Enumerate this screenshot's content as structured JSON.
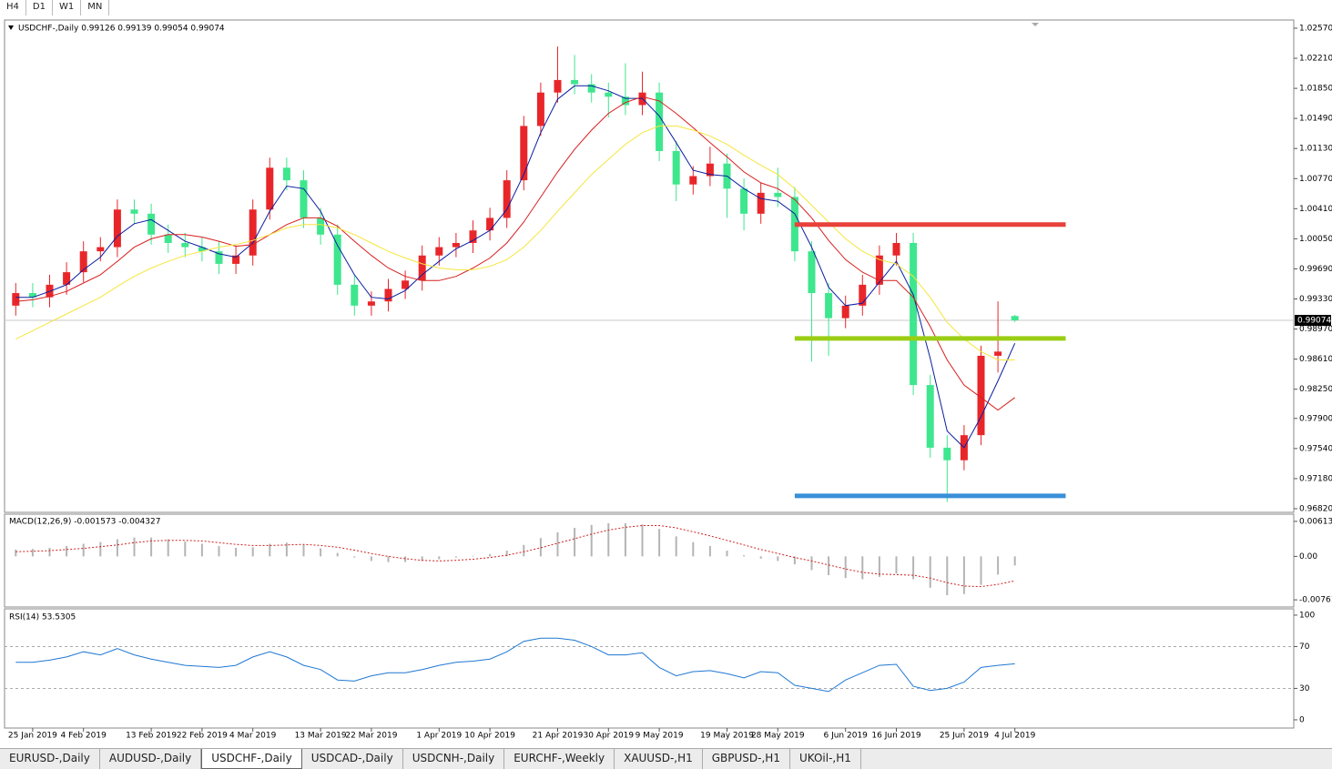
{
  "toolbar": [
    "H4",
    "D1",
    "W1",
    "MN"
  ],
  "tabs": [
    "EURUSD-,Daily",
    "AUDUSD-,Daily",
    "USDCHF-,Daily",
    "USDCAD-,Daily",
    "USDCNH-,Daily",
    "EURCHF-,Weekly",
    "XAUUSD-,H1",
    "GBPUSD-,H1",
    "UKOil-,H1"
  ],
  "active_tab": 2,
  "chart_data": [
    {
      "type": "candlestick",
      "title": "USDCHF-,Daily  0.99126 0.99139 0.99054 0.99074",
      "up_color": "#e8262a",
      "down_color": "#3ee68e",
      "ohlc": [
        [
          0.9925,
          0.9952,
          0.9913,
          0.994
        ],
        [
          0.994,
          0.9952,
          0.9923,
          0.9935
        ],
        [
          0.9935,
          0.9962,
          0.9923,
          0.995
        ],
        [
          0.995,
          0.9977,
          0.9938,
          0.9965
        ],
        [
          0.9965,
          1.0002,
          0.9953,
          0.999
        ],
        [
          0.999,
          1.0007,
          0.9978,
          0.9995
        ],
        [
          0.9995,
          1.0052,
          0.9983,
          1.004
        ],
        [
          1.004,
          1.0052,
          1.0023,
          1.0035
        ],
        [
          1.0035,
          1.0047,
          0.9998,
          1.001
        ],
        [
          1.001,
          1.0022,
          0.9988,
          1.0
        ],
        [
          1.0,
          1.0012,
          0.9983,
          0.9995
        ],
        [
          0.9995,
          1.0007,
          0.9978,
          0.999
        ],
        [
          0.999,
          1.0002,
          0.9963,
          0.9975
        ],
        [
          0.9975,
          0.9997,
          0.9963,
          0.9985
        ],
        [
          0.9985,
          1.0052,
          0.9973,
          1.004
        ],
        [
          1.004,
          1.0102,
          1.0028,
          1.009
        ],
        [
          1.009,
          1.0102,
          1.0063,
          1.0075
        ],
        [
          1.0075,
          1.0087,
          1.0018,
          1.003
        ],
        [
          1.003,
          1.0042,
          0.9998,
          1.001
        ],
        [
          1.001,
          1.0022,
          0.9938,
          0.995
        ],
        [
          0.995,
          0.9962,
          0.9913,
          0.9925
        ],
        [
          0.9925,
          0.9942,
          0.9913,
          0.993
        ],
        [
          0.993,
          0.9957,
          0.9918,
          0.9945
        ],
        [
          0.9945,
          0.9967,
          0.9933,
          0.9955
        ],
        [
          0.9955,
          0.9997,
          0.9943,
          0.9985
        ],
        [
          0.9985,
          1.0007,
          0.9973,
          0.9995
        ],
        [
          0.9995,
          1.0012,
          0.9983,
          1.0
        ],
        [
          1.0,
          1.0027,
          0.9988,
          1.0015
        ],
        [
          1.0015,
          1.0042,
          1.0003,
          1.003
        ],
        [
          1.003,
          1.0087,
          1.0018,
          1.0075
        ],
        [
          1.0075,
          1.0152,
          1.0063,
          1.014
        ],
        [
          1.014,
          1.0192,
          1.0128,
          1.018
        ],
        [
          1.018,
          1.0235,
          1.0168,
          1.0195
        ],
        [
          1.0195,
          1.0225,
          1.0178,
          1.019
        ],
        [
          1.019,
          1.0202,
          1.0168,
          1.018
        ],
        [
          1.018,
          1.0192,
          1.015,
          1.0175
        ],
        [
          1.0175,
          1.0215,
          1.0153,
          1.0165
        ],
        [
          1.0165,
          1.0205,
          1.0153,
          1.018
        ],
        [
          1.018,
          1.0192,
          1.0098,
          1.011
        ],
        [
          1.011,
          1.0122,
          1.005,
          1.007
        ],
        [
          1.007,
          1.0092,
          1.0058,
          1.008
        ],
        [
          1.008,
          1.0115,
          1.0068,
          1.0095
        ],
        [
          1.0095,
          1.0107,
          1.003,
          1.0065
        ],
        [
          1.0065,
          1.0077,
          1.0015,
          1.0035
        ],
        [
          1.0035,
          1.0072,
          1.0023,
          1.006
        ],
        [
          1.006,
          1.009,
          1.0043,
          1.0055
        ],
        [
          1.0055,
          1.0067,
          0.9978,
          0.999
        ],
        [
          0.999,
          1.0002,
          0.9858,
          0.994
        ],
        [
          0.994,
          0.9952,
          0.9865,
          0.991
        ],
        [
          0.991,
          0.9937,
          0.9898,
          0.9925
        ],
        [
          0.9925,
          0.9962,
          0.9913,
          0.995
        ],
        [
          0.995,
          0.9997,
          0.9938,
          0.9985
        ],
        [
          0.9985,
          1.0012,
          0.9973,
          1.0
        ],
        [
          1.0,
          1.0012,
          0.9818,
          0.983
        ],
        [
          0.983,
          0.9842,
          0.9743,
          0.9755
        ],
        [
          0.9755,
          0.977,
          0.969,
          0.974
        ],
        [
          0.974,
          0.9782,
          0.9728,
          0.977
        ],
        [
          0.977,
          0.9877,
          0.9758,
          0.9865
        ],
        [
          0.9865,
          0.993,
          0.9845,
          0.987
        ],
        [
          0.99126,
          0.99139,
          0.99054,
          0.99074
        ]
      ],
      "series": [
        {
          "color": "#0a1ea0",
          "values": [
            0.9935,
            0.9935,
            0.9942,
            0.995,
            0.9968,
            0.9983,
            1.0008,
            1.0023,
            1.0028,
            1.0015,
            1.0002,
            0.9995,
            0.9987,
            0.9983,
            1.0,
            1.0038,
            1.0068,
            1.0065,
            1.0038,
            0.9997,
            0.9962,
            0.9935,
            0.9933,
            0.9943,
            0.9962,
            0.9978,
            0.9993,
            1.0003,
            1.0015,
            1.004,
            1.0082,
            1.0132,
            1.0172,
            1.0188,
            1.0188,
            1.0182,
            1.0173,
            1.0173,
            1.0152,
            1.012,
            1.0087,
            1.0082,
            1.008,
            1.0065,
            1.0053,
            1.005,
            1.0035,
            0.9995,
            0.9947,
            0.9925,
            0.9928,
            0.9953,
            0.9978,
            0.9938,
            0.9862,
            0.9775,
            0.9755,
            0.9792,
            0.9835,
            0.988
          ]
        },
        {
          "color": "#d81e1e",
          "values": [
            0.993,
            0.9932,
            0.9936,
            0.9942,
            0.9952,
            0.9962,
            0.9978,
            0.9995,
            1.0005,
            1.001,
            1.001,
            1.0007,
            1.0002,
            0.9996,
            0.9998,
            1.001,
            1.0022,
            1.003,
            1.003,
            1.002,
            1.0002,
            0.9985,
            0.997,
            0.996,
            0.9955,
            0.9955,
            0.996,
            0.997,
            0.9982,
            1.0,
            1.0025,
            1.0055,
            1.0085,
            1.0112,
            1.0135,
            1.0155,
            1.0168,
            1.0175,
            1.017,
            1.0155,
            1.0138,
            1.012,
            1.0103,
            1.0085,
            1.0072,
            1.0065,
            1.0052,
            1.003,
            1.0003,
            0.998,
            0.9965,
            0.9955,
            0.9955,
            0.9935,
            0.99,
            0.986,
            0.983,
            0.9815,
            0.98,
            0.9815
          ]
        },
        {
          "color": "#f5e63c",
          "values": [
            0.9885,
            0.9895,
            0.9905,
            0.9915,
            0.9925,
            0.9935,
            0.9948,
            0.996,
            0.997,
            0.9978,
            0.9985,
            0.999,
            0.9995,
            0.9998,
            1.0003,
            1.001,
            1.0018,
            1.0022,
            1.0022,
            1.0018,
            1.001,
            1.0,
            0.999,
            0.9982,
            0.9975,
            0.997,
            0.9968,
            0.9968,
            0.9972,
            0.998,
            0.9995,
            1.0015,
            1.0038,
            1.006,
            1.0082,
            1.01,
            1.0118,
            1.0132,
            1.014,
            1.014,
            1.0135,
            1.0128,
            1.0118,
            1.0105,
            1.0093,
            1.0082,
            1.0065,
            1.0045,
            1.0025,
            1.0005,
            0.999,
            0.998,
            0.9975,
            0.996,
            0.9935,
            0.9905,
            0.9885,
            0.987,
            0.986,
            0.986
          ]
        }
      ],
      "levels": [
        {
          "value": 1.0022,
          "color": "#e8403a"
        },
        {
          "value": 0.98857,
          "color": "#9acd14"
        },
        {
          "value": 0.96973,
          "color": "#3a8fd8"
        }
      ],
      "current_price": {
        "value": 0.99074,
        "label": "0.99074"
      },
      "ylim": [
        0.96787,
        1.02646
      ],
      "yticks": [
        {
          "value": 1.0257,
          "label": "1.02570"
        },
        {
          "value": 1.0221,
          "label": "1.02210"
        },
        {
          "value": 1.0185,
          "label": "1.01850"
        },
        {
          "value": 1.0149,
          "label": "1.01490"
        },
        {
          "value": 1.0113,
          "label": "1.01130"
        },
        {
          "value": 1.0077,
          "label": "1.00770"
        },
        {
          "value": 1.0041,
          "label": "1.00410"
        },
        {
          "value": 1.0005,
          "label": "1.00050"
        },
        {
          "value": 0.9969,
          "label": "0.99690"
        },
        {
          "value": 0.9933,
          "label": "0.99330"
        },
        {
          "value": 0.9897,
          "label": "0.98970"
        },
        {
          "value": 0.9861,
          "label": "0.98610"
        },
        {
          "value": 0.9825,
          "label": "0.98250"
        },
        {
          "value": 0.979,
          "label": "0.97900"
        },
        {
          "value": 0.9754,
          "label": "0.97540"
        },
        {
          "value": 0.9718,
          "label": "0.97180"
        },
        {
          "value": 0.9682,
          "label": "0.96820"
        }
      ],
      "xticks": [
        {
          "value": 1,
          "label": "25 Jan 2019"
        },
        {
          "value": 4,
          "label": "4 Feb 2019"
        },
        {
          "value": 8,
          "label": "13 Feb 2019"
        },
        {
          "value": 11,
          "label": "22 Feb 2019"
        },
        {
          "value": 14,
          "label": "4 Mar 2019"
        },
        {
          "value": 18,
          "label": "13 Mar 2019"
        },
        {
          "value": 21,
          "label": "22 Mar 2019"
        },
        {
          "value": 25,
          "label": "1 Apr 2019"
        },
        {
          "value": 28,
          "label": "10 Apr 2019"
        },
        {
          "value": 32,
          "label": "21 Apr 2019"
        },
        {
          "value": 35,
          "label": "30 Apr 2019"
        },
        {
          "value": 38,
          "label": "9 May 2019"
        },
        {
          "value": 42,
          "label": "19 May 2019"
        },
        {
          "value": 45,
          "label": "28 May 2019"
        },
        {
          "value": 49,
          "label": "6 Jun 2019"
        },
        {
          "value": 52,
          "label": "16 Jun 2019"
        },
        {
          "value": 56,
          "label": "25 Jun 2019"
        },
        {
          "value": 59,
          "label": "4 Jul 2019"
        }
      ]
    },
    {
      "type": "macd",
      "title": "MACD(12,26,9) -0.001573 -0.004327",
      "color": "#b4b4b4",
      "values": [
        0.0012,
        0.0013,
        0.0015,
        0.0018,
        0.0022,
        0.0025,
        0.003,
        0.0033,
        0.0033,
        0.003,
        0.0026,
        0.0022,
        0.0018,
        0.0015,
        0.0016,
        0.0022,
        0.0024,
        0.002,
        0.0014,
        0.0006,
        -0.0002,
        -0.0008,
        -0.001,
        -0.001,
        -0.0008,
        -0.0005,
        -0.0002,
        0.0001,
        0.0004,
        0.001,
        0.002,
        0.0032,
        0.0042,
        0.005,
        0.0055,
        0.0058,
        0.0058,
        0.0056,
        0.0048,
        0.0035,
        0.0025,
        0.0018,
        0.001,
        0.0002,
        -0.0004,
        -0.0008,
        -0.0014,
        -0.0024,
        -0.0033,
        -0.0038,
        -0.004,
        -0.0036,
        -0.003,
        -0.004,
        -0.0055,
        -0.0068,
        -0.0066,
        -0.005,
        -0.0032,
        -0.0016
      ],
      "series": [
        {
          "color": "#d02020",
          "values": [
            0.0008,
            0.0009,
            0.001,
            0.0012,
            0.0014,
            0.0017,
            0.002,
            0.0024,
            0.0027,
            0.0028,
            0.0028,
            0.0027,
            0.0024,
            0.0021,
            0.0019,
            0.0019,
            0.002,
            0.0021,
            0.0019,
            0.0016,
            0.0011,
            0.0005,
            0.0,
            -0.0004,
            -0.0007,
            -0.0008,
            -0.0007,
            -0.0005,
            -0.0002,
            0.0002,
            0.0008,
            0.0015,
            0.0023,
            0.0031,
            0.0039,
            0.0046,
            0.0051,
            0.0054,
            0.0054,
            0.005,
            0.0043,
            0.0036,
            0.0028,
            0.002,
            0.0012,
            0.0005,
            -0.0002,
            -0.0008,
            -0.0015,
            -0.0022,
            -0.0028,
            -0.0031,
            -0.0032,
            -0.0033,
            -0.0038,
            -0.0046,
            -0.0052,
            -0.0053,
            -0.0049,
            -0.0043
          ]
        }
      ],
      "ylim": [
        -0.00855,
        0.00707
      ],
      "yticks": [
        0.00613,
        {
          "value": 0,
          "label": "0.00"
        },
        -0.007612
      ]
    },
    {
      "type": "line",
      "title": "RSI(14) 53.5305",
      "series": [
        {
          "color": "#1e78d2",
          "values": [
            55,
            55,
            57,
            60,
            65,
            62,
            68,
            62,
            58,
            55,
            52,
            51,
            50,
            52,
            60,
            65,
            60,
            52,
            48,
            38,
            37,
            42,
            45,
            45,
            48,
            52,
            55,
            56,
            58,
            65,
            75,
            78,
            78,
            76,
            70,
            62,
            62,
            64,
            50,
            42,
            46,
            47,
            44,
            40,
            46,
            45,
            33,
            30,
            27,
            38,
            45,
            52,
            53,
            32,
            28,
            30,
            36,
            50,
            52,
            53.5
          ]
        }
      ],
      "levels": [
        70,
        30
      ],
      "ylim": [
        -7,
        104.3
      ],
      "yticks": [
        100,
        70,
        30,
        0
      ]
    }
  ]
}
